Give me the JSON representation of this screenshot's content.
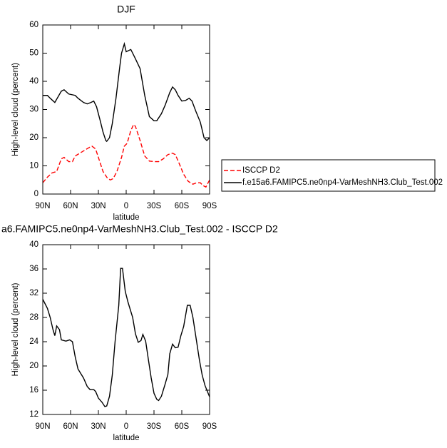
{
  "chart_data": [
    {
      "type": "line",
      "title": "DJF",
      "x_label": "latitude",
      "y_label": "High-level cloud (percent)",
      "xlim": [
        90,
        -90
      ],
      "xticks": [
        {
          "value": 90,
          "label": "90N"
        },
        {
          "value": 60,
          "label": "60N"
        },
        {
          "value": 30,
          "label": "30N"
        },
        0,
        {
          "value": -30,
          "label": "30S"
        },
        {
          "value": -60,
          "label": "60S"
        },
        {
          "value": -90,
          "label": "90S"
        }
      ],
      "ylim": [
        0,
        60
      ],
      "yticks": [
        0,
        10,
        20,
        30,
        40,
        50,
        60
      ],
      "legend": "right",
      "series": [
        {
          "name": "ISCCP D2",
          "color": "#ff0000",
          "linestyle": "dashed",
          "x": [
            90,
            85,
            80,
            75,
            70,
            67,
            62,
            58,
            55,
            50,
            45,
            40,
            37,
            33,
            30,
            25,
            20,
            17,
            14,
            10,
            5,
            2,
            -1,
            -5,
            -8,
            -10,
            -15,
            -20,
            -25,
            -30,
            -35,
            -40,
            -45,
            -50,
            -53,
            -57,
            -62,
            -67,
            -72,
            -76,
            -80,
            -83,
            -86,
            -90
          ],
          "values": [
            4,
            6,
            7.5,
            8,
            12.5,
            13,
            11.5,
            11.5,
            13.5,
            14.5,
            15.5,
            16.5,
            17,
            16,
            13,
            8,
            5.5,
            5,
            5.5,
            8,
            13,
            17,
            18,
            22.5,
            24.7,
            24,
            19,
            13.5,
            11.7,
            11.5,
            11.5,
            12.5,
            14,
            14.5,
            14,
            11,
            7,
            4.5,
            3.5,
            4,
            4,
            3,
            2.5,
            5
          ]
        },
        {
          "name": "f.e15a6.FAMIPC5.ne0np4-VarMeshNH3.Club_Test.002",
          "color": "#000000",
          "linestyle": "solid",
          "x": [
            90,
            85,
            82,
            77,
            70,
            67,
            62,
            55,
            52,
            46,
            42,
            38,
            35,
            32,
            28,
            25,
            22,
            21,
            18,
            15,
            11,
            7,
            5,
            2,
            0,
            -5,
            -10,
            -15,
            -20,
            -25,
            -30,
            -33,
            -38,
            -42,
            -47,
            -50,
            -53,
            -56,
            -60,
            -64,
            -68,
            -71,
            -75,
            -80,
            -84,
            -87,
            -90
          ],
          "values": [
            35,
            35,
            34,
            32.5,
            36.5,
            37,
            35.5,
            35,
            34,
            32.5,
            32,
            32.5,
            33,
            31,
            26,
            22,
            19,
            18.7,
            20,
            25,
            34,
            45,
            50,
            53.3,
            50.5,
            51.3,
            48,
            44.5,
            35,
            27.5,
            26,
            26,
            28.5,
            31.5,
            36,
            38,
            37,
            35,
            33,
            33.2,
            34,
            33,
            29.5,
            25.5,
            20,
            19,
            20
          ]
        }
      ]
    },
    {
      "type": "line",
      "title": "a6.FAMIPC5.ne0np4-VarMeshNH3.Club_Test.002 - ISCCP D2",
      "x_label": "latitude",
      "y_label": "High-level cloud (percent)",
      "xlim": [
        90,
        -90
      ],
      "xticks": [
        {
          "value": 90,
          "label": "90N"
        },
        {
          "value": 60,
          "label": "60N"
        },
        {
          "value": 30,
          "label": "30N"
        },
        0,
        {
          "value": -30,
          "label": "30S"
        },
        {
          "value": -60,
          "label": "60S"
        },
        {
          "value": -90,
          "label": "90S"
        }
      ],
      "ylim": [
        12,
        40
      ],
      "yticks": [
        12,
        16,
        20,
        24,
        28,
        32,
        36,
        40
      ],
      "series": [
        {
          "color": "#000000",
          "linestyle": "solid",
          "x": [
            90,
            85,
            82,
            79,
            77,
            75,
            72,
            70,
            65,
            61,
            58,
            55,
            52,
            46,
            42,
            39,
            35,
            33,
            30,
            26,
            23,
            21,
            18,
            15,
            12,
            8,
            6,
            4,
            1,
            -2,
            -7,
            -10,
            -13,
            -16,
            -18,
            -21,
            -24,
            -27,
            -30,
            -33,
            -35,
            -38,
            -42,
            -45,
            -47,
            -50,
            -53,
            -56,
            -59,
            -62,
            -66,
            -69,
            -72,
            -76,
            -79,
            -82,
            -85,
            -90
          ],
          "values": [
            31,
            29.5,
            28,
            26,
            25,
            26.6,
            26,
            24.3,
            24.1,
            24.3,
            24,
            21.5,
            19.5,
            18,
            16.6,
            16.1,
            16.1,
            15.8,
            14.7,
            14,
            13.3,
            13.4,
            15,
            18.5,
            24,
            30,
            36.1,
            36.1,
            32.3,
            30.5,
            28,
            25.3,
            23.9,
            24.2,
            25.2,
            24.1,
            21,
            18,
            15.5,
            14.5,
            14.3,
            15,
            17,
            18.6,
            22,
            23.6,
            23,
            23.1,
            25,
            26.5,
            30,
            30,
            28,
            24,
            21,
            18.5,
            16.8,
            14.9
          ]
        }
      ]
    }
  ]
}
